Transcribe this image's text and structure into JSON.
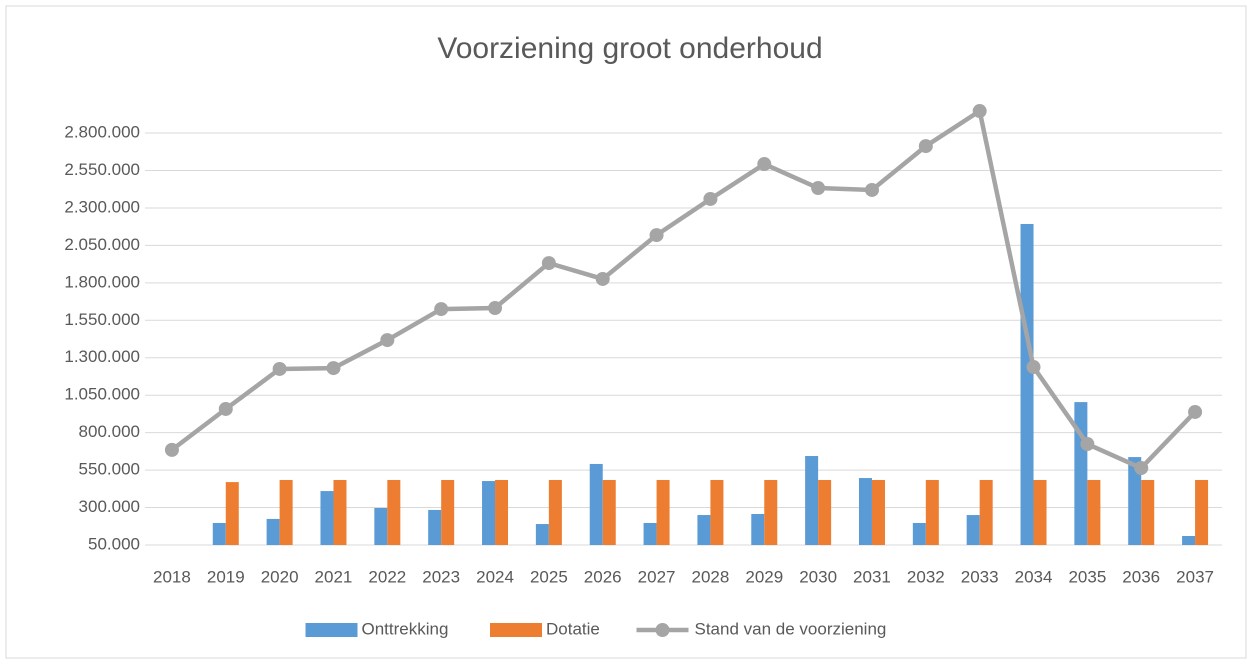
{
  "chart_data": {
    "type": "bar-line",
    "title": "Voorziening groot onderhoud",
    "categories": [
      "2018",
      "2019",
      "2020",
      "2021",
      "2022",
      "2023",
      "2024",
      "2025",
      "2026",
      "2027",
      "2028",
      "2029",
      "2030",
      "2031",
      "2032",
      "2033",
      "2034",
      "2035",
      "2036",
      "2037"
    ],
    "series": [
      {
        "name": "Onttrekking",
        "type": "bar",
        "color": "#5b9bd5",
        "values": [
          null,
          197000,
          224000,
          410000,
          297000,
          284000,
          477000,
          190000,
          591000,
          197000,
          250000,
          257000,
          644000,
          497000,
          197000,
          250000,
          2193000,
          1004000,
          637000,
          110000
        ]
      },
      {
        "name": "Dotatie",
        "type": "bar",
        "color": "#ed7d31",
        "values": [
          null,
          470000,
          484000,
          484000,
          484000,
          484000,
          484000,
          484000,
          484000,
          484000,
          484000,
          484000,
          484000,
          484000,
          484000,
          484000,
          484000,
          484000,
          484000,
          484000
        ]
      },
      {
        "name": "Stand van de voorziening",
        "type": "line",
        "color": "#a5a5a5",
        "values": [
          685000,
          958000,
          1225000,
          1231000,
          1418000,
          1625000,
          1632000,
          1932000,
          1826000,
          2119000,
          2360000,
          2593000,
          2433000,
          2420000,
          2713000,
          2947000,
          1238000,
          724000,
          564000,
          938000
        ]
      }
    ],
    "ylim": [
      50000,
      3050000
    ],
    "yticks": [
      {
        "value": 50000,
        "label": "50.000"
      },
      {
        "value": 300000,
        "label": "300.000"
      },
      {
        "value": 550000,
        "label": "550.000"
      },
      {
        "value": 800000,
        "label": "800.000"
      },
      {
        "value": 1050000,
        "label": "1.050.000"
      },
      {
        "value": 1300000,
        "label": "1.300.000"
      },
      {
        "value": 1550000,
        "label": "1.550.000"
      },
      {
        "value": 1800000,
        "label": "1.800.000"
      },
      {
        "value": 2050000,
        "label": "2.050.000"
      },
      {
        "value": 2300000,
        "label": "2.300.000"
      },
      {
        "value": 2550000,
        "label": "2.550.000"
      },
      {
        "value": 2800000,
        "label": "2.800.000"
      }
    ],
    "grid": true,
    "legend": "bottom"
  }
}
